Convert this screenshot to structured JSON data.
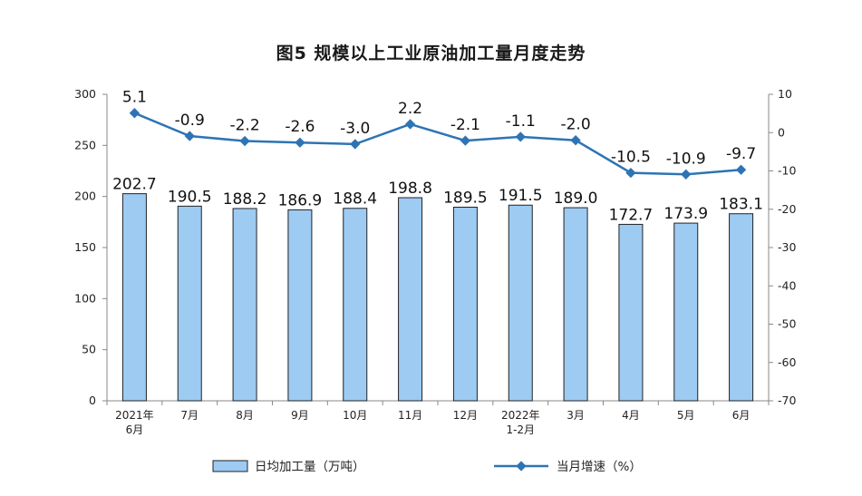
{
  "title": "图5  规模以上工业原油加工量月度走势",
  "chart_data": {
    "type": "bar",
    "title": "图5  规模以上工业原油加工量月度走势",
    "categories": [
      [
        "2021年",
        "6月"
      ],
      [
        "7月"
      ],
      [
        "8月"
      ],
      [
        "9月"
      ],
      [
        "10月"
      ],
      [
        "11月"
      ],
      [
        "12月"
      ],
      [
        "2022年",
        "1-2月"
      ],
      [
        "3月"
      ],
      [
        "4月"
      ],
      [
        "5月"
      ],
      [
        "6月"
      ]
    ],
    "series": [
      {
        "name": "日均加工量（万吨）",
        "type": "bar",
        "axis": "left",
        "color": "#9dcbf2",
        "values": [
          202.7,
          190.5,
          188.2,
          186.9,
          188.4,
          198.8,
          189.5,
          191.5,
          189.0,
          172.7,
          173.9,
          183.1
        ],
        "labels": [
          "202.7",
          "190.5",
          "188.2",
          "186.9",
          "188.4",
          "198.8",
          "189.5",
          "191.5",
          "189.0",
          "172.7",
          "173.9",
          "183.1"
        ]
      },
      {
        "name": "当月增速（%）",
        "type": "line",
        "axis": "right",
        "color": "#2e74b5",
        "values": [
          5.1,
          -0.9,
          -2.2,
          -2.6,
          -3.0,
          2.2,
          -2.1,
          -1.1,
          -2.0,
          -10.5,
          -10.9,
          -9.7
        ],
        "labels": [
          "5.1",
          "-0.9",
          "-2.2",
          "-2.6",
          "-3.0",
          "2.2",
          "-2.1",
          "-1.1",
          "-2.0",
          "-10.5",
          "-10.9",
          "-9.7"
        ]
      }
    ],
    "y_left": {
      "min": 0,
      "max": 300,
      "ticks": [
        "0",
        "50",
        "100",
        "150",
        "200",
        "250",
        "300"
      ]
    },
    "y_right": {
      "min": -70,
      "max": 10,
      "ticks": [
        "-70",
        "-60",
        "-50",
        "-40",
        "-30",
        "-20",
        "-10",
        "0",
        "10"
      ]
    },
    "grid": false,
    "legend": {
      "position": "bottom",
      "items": [
        "日均加工量（万吨）",
        "当月增速（%）"
      ]
    }
  }
}
